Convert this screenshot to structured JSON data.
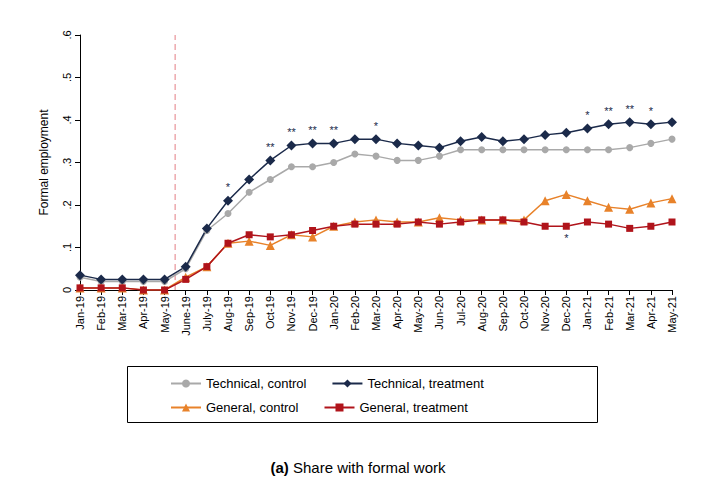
{
  "chart_data": {
    "type": "line",
    "title": "(a) Share with formal work",
    "y_label": "Formal employment",
    "categories": [
      "Jan-19",
      "Feb-19",
      "Mar-19",
      "Apr-19",
      "May-19",
      "June-19",
      "July-19",
      "Aug-19",
      "Sep-19",
      "Oct-19",
      "Nov-19",
      "Dec-19",
      "Jan-20",
      "Feb-20",
      "Mar-20",
      "Apr-20",
      "May-20",
      "Jun-20",
      "Jul-20",
      "Aug-20",
      "Sep-20",
      "Oct-20",
      "Nov-20",
      "Dec-20",
      "Jan-21",
      "Feb-21",
      "Mar-21",
      "Apr-21",
      "May-21"
    ],
    "series": [
      {
        "name": "Technical, control",
        "color": "#a9a9a9",
        "marker": "circle",
        "values": [
          0.03,
          0.02,
          0.02,
          0.02,
          0.02,
          0.05,
          0.14,
          0.18,
          0.23,
          0.26,
          0.29,
          0.29,
          0.3,
          0.32,
          0.315,
          0.305,
          0.305,
          0.315,
          0.33,
          0.33,
          0.33,
          0.33,
          0.33,
          0.33,
          0.33,
          0.33,
          0.335,
          0.345,
          0.355
        ]
      },
      {
        "name": "Technical, treatment",
        "color": "#1b2a4a",
        "marker": "diamond",
        "values": [
          0.035,
          0.025,
          0.025,
          0.025,
          0.025,
          0.055,
          0.145,
          0.21,
          0.26,
          0.305,
          0.34,
          0.345,
          0.345,
          0.355,
          0.355,
          0.345,
          0.34,
          0.335,
          0.35,
          0.36,
          0.35,
          0.355,
          0.365,
          0.37,
          0.38,
          0.39,
          0.395,
          0.39,
          0.395
        ]
      },
      {
        "name": "General, control",
        "color": "#e8822a",
        "marker": "triangle",
        "values": [
          0.005,
          0.005,
          0.005,
          0.0,
          0.0,
          0.03,
          0.055,
          0.11,
          0.115,
          0.105,
          0.13,
          0.125,
          0.15,
          0.16,
          0.165,
          0.16,
          0.16,
          0.17,
          0.165,
          0.165,
          0.165,
          0.165,
          0.21,
          0.225,
          0.21,
          0.195,
          0.19,
          0.205,
          0.215
        ]
      },
      {
        "name": "General, treatment",
        "color": "#b0141b",
        "marker": "rect",
        "values": [
          0.005,
          0.005,
          0.005,
          0.0,
          0.0,
          0.025,
          0.055,
          0.11,
          0.13,
          0.125,
          0.13,
          0.14,
          0.15,
          0.155,
          0.155,
          0.155,
          0.16,
          0.155,
          0.16,
          0.165,
          0.165,
          0.16,
          0.15,
          0.15,
          0.16,
          0.155,
          0.145,
          0.15,
          0.16
        ]
      }
    ],
    "annotations": [
      {
        "series": "Technical, treatment",
        "category": "Aug-19",
        "text": "*"
      },
      {
        "series": "Technical, treatment",
        "category": "Oct-19",
        "text": "**"
      },
      {
        "series": "Technical, treatment",
        "category": "Nov-19",
        "text": "**"
      },
      {
        "series": "Technical, treatment",
        "category": "Dec-19",
        "text": "**"
      },
      {
        "series": "Technical, treatment",
        "category": "Jan-20",
        "text": "**"
      },
      {
        "series": "Technical, treatment",
        "category": "Mar-20",
        "text": "*"
      },
      {
        "series": "Technical, treatment",
        "category": "Jan-21",
        "text": "*"
      },
      {
        "series": "Technical, treatment",
        "category": "Feb-21",
        "text": "**"
      },
      {
        "series": "Technical, treatment",
        "category": "Mar-21",
        "text": "**"
      },
      {
        "series": "Technical, treatment",
        "category": "Apr-21",
        "text": "*"
      },
      {
        "series": "General, treatment",
        "category": "Dec-20",
        "text": "*"
      }
    ],
    "reference_line": {
      "between": [
        "May-19",
        "June-19"
      ],
      "color": "#e8949a",
      "line_style": "dashed"
    },
    "ylim": [
      0,
      0.6
    ],
    "yticks": [
      0,
      {
        "value": 0.1,
        "label": ".1"
      },
      {
        "value": 0.2,
        "label": ".2"
      },
      {
        "value": 0.3,
        "label": ".3"
      },
      {
        "value": 0.4,
        "label": ".4"
      },
      {
        "value": 0.5,
        "label": ".5"
      },
      {
        "value": 0.6,
        "label": ".6"
      }
    ],
    "grid": false,
    "legend": "bottom"
  }
}
